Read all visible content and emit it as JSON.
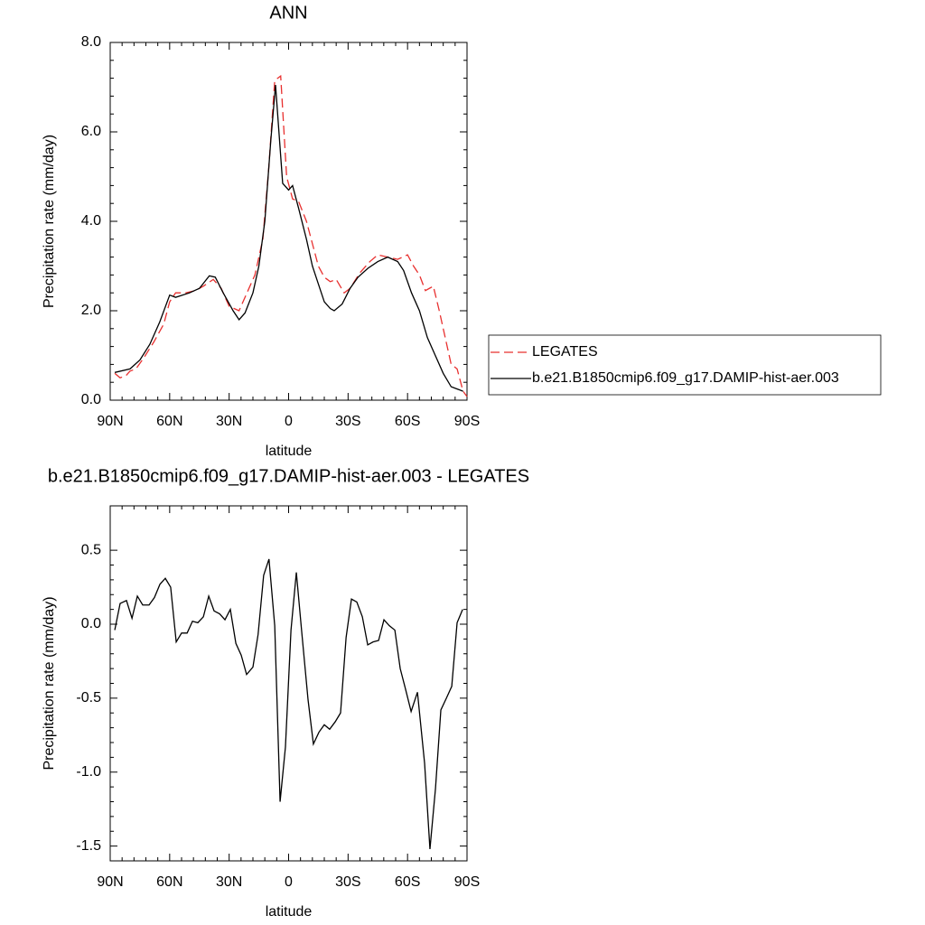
{
  "chart_data": [
    {
      "type": "line",
      "title": "ANN",
      "xlabel": "latitude",
      "ylabel": "Precipitation rate (mm/day)",
      "xlim": [
        90,
        -90
      ],
      "xticks": [
        {
          "value": 90,
          "label": "90N"
        },
        {
          "value": 60,
          "label": "60N"
        },
        {
          "value": 30,
          "label": "30N"
        },
        0,
        {
          "value": -30,
          "label": "30S"
        },
        {
          "value": -60,
          "label": "60S"
        },
        {
          "value": -90,
          "label": "90S"
        }
      ],
      "ylim": [
        0,
        8
      ],
      "yticks": [
        {
          "value": 0,
          "label": "0.0"
        },
        {
          "value": 2,
          "label": "2.0"
        },
        {
          "value": 4,
          "label": "4.0"
        },
        {
          "value": 6,
          "label": "6.0"
        },
        {
          "value": 8,
          "label": "8.0"
        }
      ],
      "legend": "right",
      "series": [
        {
          "name": "LEGATES",
          "color": "#e8302f",
          "line_style": "dashed",
          "x": [
            87.7,
            85,
            82,
            80,
            77,
            73,
            68,
            63,
            60,
            57,
            52,
            47,
            43,
            38,
            34,
            30,
            25,
            21,
            17,
            13,
            10,
            7,
            4,
            1,
            -2,
            -5,
            -9,
            -12,
            -15,
            -18,
            -21,
            -24,
            -28,
            -31,
            -36,
            -41,
            -45,
            -50,
            -55,
            -60,
            -63,
            -66,
            -69,
            -71,
            -73,
            -76,
            -79,
            -82,
            -85,
            -88,
            -90
          ],
          "values": [
            0.6,
            0.5,
            0.55,
            0.65,
            0.7,
            0.95,
            1.3,
            1.7,
            2.2,
            2.4,
            2.4,
            2.45,
            2.55,
            2.7,
            2.5,
            2.1,
            2.0,
            2.4,
            2.8,
            3.6,
            5.2,
            7.15,
            7.25,
            5.0,
            4.5,
            4.45,
            4.0,
            3.5,
            3.0,
            2.75,
            2.65,
            2.7,
            2.4,
            2.5,
            2.85,
            3.1,
            3.25,
            3.2,
            3.15,
            3.25,
            3.0,
            2.8,
            2.45,
            2.5,
            2.55,
            2.0,
            1.4,
            0.8,
            0.7,
            0.2,
            0.08
          ]
        },
        {
          "name": "b.e21.B1850cmip6.f09_g17.DAMIP-hist-aer.003",
          "color": "#000000",
          "line_style": "solid",
          "x": [
            87.7,
            80,
            75,
            70,
            65,
            60,
            57,
            50,
            45,
            40,
            37,
            33,
            28,
            25,
            22,
            18,
            15,
            12,
            9,
            6.6,
            3,
            0,
            -2,
            -5,
            -9,
            -12,
            -15,
            -18,
            -21,
            -23,
            -27,
            -31,
            -35,
            -40,
            -45,
            -50,
            -55,
            -58,
            -62,
            -66,
            -70,
            -74,
            -78,
            -82,
            -85,
            -88
          ],
          "values": [
            0.62,
            0.7,
            0.9,
            1.25,
            1.75,
            2.35,
            2.3,
            2.4,
            2.5,
            2.78,
            2.75,
            2.4,
            2.0,
            1.8,
            1.95,
            2.4,
            3.0,
            4.0,
            5.8,
            7.05,
            4.85,
            4.7,
            4.8,
            4.3,
            3.6,
            3.0,
            2.6,
            2.2,
            2.05,
            2.0,
            2.15,
            2.5,
            2.75,
            2.95,
            3.1,
            3.2,
            3.1,
            2.9,
            2.4,
            2.0,
            1.4,
            1.0,
            0.6,
            0.3,
            0.25,
            0.2
          ]
        }
      ]
    },
    {
      "type": "line",
      "title": "b.e21.B1850cmip6.f09_g17.DAMIP-hist-aer.003 - LEGATES",
      "xlabel": "latitude",
      "ylabel": "Precipitation rate (mm/day)",
      "xlim": [
        90,
        -90
      ],
      "xticks": [
        {
          "value": 90,
          "label": "90N"
        },
        {
          "value": 60,
          "label": "60N"
        },
        {
          "value": 30,
          "label": "30N"
        },
        0,
        {
          "value": -30,
          "label": "30S"
        },
        {
          "value": -60,
          "label": "60S"
        },
        {
          "value": -90,
          "label": "90S"
        }
      ],
      "ylim": [
        -1.6,
        0.8
      ],
      "yticks": [
        -1.5,
        {
          "value": -1,
          "label": "-1.0"
        },
        -0.5,
        {
          "value": 0,
          "label": "0.0"
        },
        0.5
      ],
      "color": "#000000",
      "x": [
        87.7,
        85,
        81.8,
        79,
        76.3,
        73.6,
        70.4,
        67.7,
        64.9,
        62.2,
        59.5,
        56.7,
        54,
        51.2,
        48.5,
        45.8,
        43,
        40.3,
        37.6,
        34.8,
        32.1,
        29.4,
        26.6,
        23.9,
        21.2,
        18,
        15.4,
        12.6,
        9.9,
        7,
        4.3,
        1.6,
        -1.2,
        -3.9,
        -6.6,
        -9.8,
        -12.5,
        -15.3,
        -18,
        -20.7,
        -23.5,
        -26.2,
        -29,
        -31.7,
        -34.4,
        -37.2,
        -39.9,
        -42.6,
        -45.4,
        -48.1,
        -50.8,
        -53.6,
        -56.3,
        -59,
        -61.8,
        -65,
        -68.6,
        -71.3,
        -74.1,
        -76.8,
        -79.6,
        -82.3,
        -85,
        -87.8
      ],
      "values": [
        -0.04,
        0.14,
        0.16,
        0.04,
        0.19,
        0.13,
        0.13,
        0.18,
        0.27,
        0.31,
        0.25,
        -0.12,
        -0.06,
        -0.06,
        0.02,
        0.01,
        0.05,
        0.19,
        0.09,
        0.07,
        0.03,
        0.1,
        -0.13,
        -0.21,
        -0.34,
        -0.29,
        -0.07,
        0.33,
        0.44,
        -0.01,
        -1.2,
        -0.83,
        -0.04,
        0.35,
        -0.05,
        -0.51,
        -0.81,
        -0.73,
        -0.68,
        -0.71,
        -0.66,
        -0.6,
        -0.09,
        0.17,
        0.15,
        0.05,
        -0.14,
        -0.12,
        -0.11,
        0.03,
        -0.01,
        -0.04,
        -0.3,
        -0.44,
        -0.59,
        -0.46,
        -0.94,
        -1.52,
        -1.11,
        -0.58,
        -0.5,
        -0.42,
        0.01,
        0.1
      ]
    }
  ]
}
